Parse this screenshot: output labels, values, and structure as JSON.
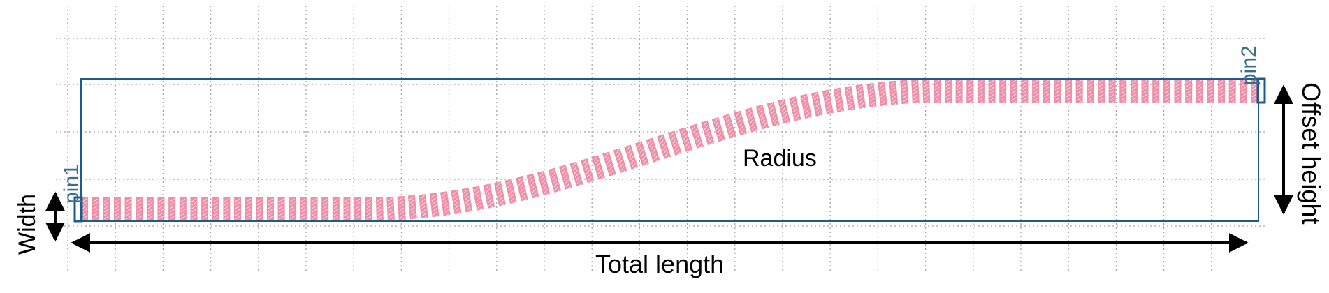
{
  "labels": {
    "pin1": "pin1",
    "pin2": "pin2",
    "radius": "Radius",
    "width": "Width",
    "total_length": "Total length",
    "offset_height": "Offset height"
  },
  "colors": {
    "grid": "#a8a8a8",
    "outline": "#1f5a8c",
    "segment": "#ef8ea8",
    "segment_hatch": "#ffffff",
    "arrow": "#000000",
    "pin_text": "#3a6f8c"
  },
  "waveguide": {
    "segment_count": 108,
    "shape": "s-bend"
  }
}
